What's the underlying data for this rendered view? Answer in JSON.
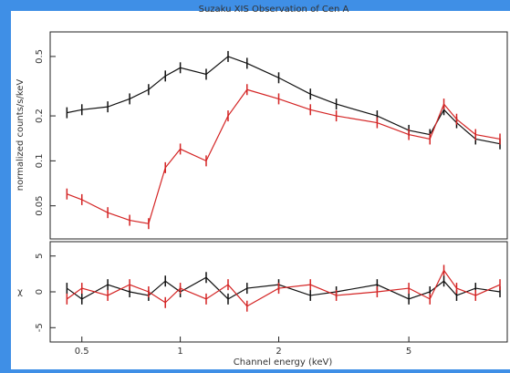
{
  "chart_data": [
    {
      "type": "line",
      "title": "Suzaku XIS Observation of Cen A",
      "y_label": "normalized counts/s/keV",
      "log_x": true,
      "log_y": true,
      "xlim": [
        0.4,
        10
      ],
      "ylim": [
        0.03,
        0.73
      ],
      "yticks": [
        0.05,
        0.1,
        0.2,
        0.5
      ],
      "x": [
        0.45,
        0.5,
        0.6,
        0.7,
        0.8,
        0.9,
        1.0,
        1.2,
        1.4,
        1.6,
        2.0,
        2.5,
        3.0,
        4.0,
        5.0,
        5.8,
        6.4,
        7.0,
        8.0,
        9.5
      ],
      "series": [
        {
          "color": "#111111",
          "values": [
            0.21,
            0.22,
            0.23,
            0.26,
            0.3,
            0.37,
            0.42,
            0.38,
            0.5,
            0.45,
            0.36,
            0.28,
            0.24,
            0.2,
            0.16,
            0.15,
            0.22,
            0.18,
            0.14,
            0.13
          ]
        },
        {
          "color": "#d42424",
          "values": [
            0.06,
            0.055,
            0.045,
            0.04,
            0.038,
            0.09,
            0.12,
            0.1,
            0.2,
            0.3,
            0.26,
            0.22,
            0.2,
            0.18,
            0.15,
            0.14,
            0.24,
            0.19,
            0.15,
            0.14
          ]
        }
      ]
    },
    {
      "type": "line",
      "y_label": "χ",
      "x_label": "Channel energy (keV)",
      "log_x": true,
      "xlim": [
        0.4,
        10
      ],
      "ylim": [
        -7,
        7
      ],
      "yticks": [
        -5,
        0,
        5
      ],
      "xticks": [
        0.5,
        1,
        2,
        5
      ],
      "x": [
        0.45,
        0.5,
        0.6,
        0.7,
        0.8,
        0.9,
        1.0,
        1.2,
        1.4,
        1.6,
        2.0,
        2.5,
        3.0,
        4.0,
        5.0,
        5.8,
        6.4,
        7.0,
        8.0,
        9.5
      ],
      "series": [
        {
          "color": "#111111",
          "values": [
            0.5,
            -1,
            1,
            0,
            -0.5,
            1.5,
            0,
            2,
            -1,
            0.5,
            1,
            -0.5,
            0,
            1,
            -1,
            0,
            1.5,
            -0.5,
            0.5,
            0
          ]
        },
        {
          "color": "#d42424",
          "values": [
            -1,
            0.5,
            -0.5,
            1,
            0,
            -1.5,
            0.5,
            -1,
            1,
            -2,
            0.5,
            1,
            -0.5,
            0,
            0.5,
            -1,
            3,
            0.5,
            -0.5,
            1
          ]
        }
      ]
    }
  ]
}
